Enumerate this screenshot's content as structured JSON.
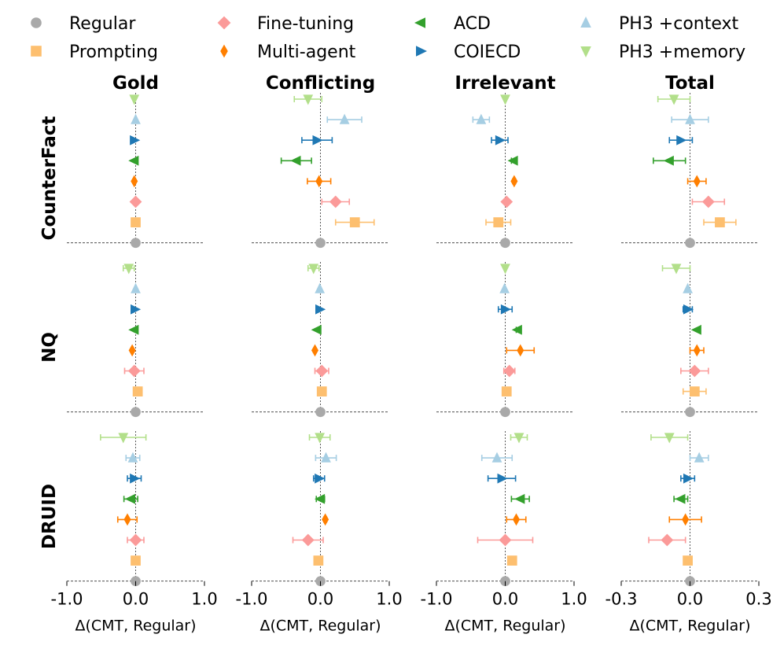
{
  "legend": {
    "placement": "top",
    "entries": [
      {
        "label": "Regular",
        "marker": "circle",
        "color": "#a9a9a9"
      },
      {
        "label": "Fine-tuning",
        "marker": "diamond",
        "color": "#fb9a99"
      },
      {
        "label": "ACD",
        "marker": "triangle-left",
        "color": "#33a02c"
      },
      {
        "label": "PH3 +context",
        "marker": "triangle-up",
        "color": "#a6cee3"
      },
      {
        "label": "Prompting",
        "marker": "square",
        "color": "#fdbf6f"
      },
      {
        "label": "Multi-agent",
        "marker": "thin-diamond",
        "color": "#ff7f00"
      },
      {
        "label": "COIECD",
        "marker": "triangle-right",
        "color": "#1f78b4"
      },
      {
        "label": "PH3 +memory",
        "marker": "triangle-down",
        "color": "#b2df8a"
      }
    ]
  },
  "chart_data": {
    "type": "scatter",
    "columns": [
      "Gold",
      "Conflicting",
      "Irrelevant",
      "Total"
    ],
    "rows": [
      "CounterFact",
      "NQ",
      "DRUID"
    ],
    "xlabel": "Δ(CMT, Regular)",
    "xlims": [
      [
        -1.0,
        1.0
      ],
      [
        -1.0,
        1.0
      ],
      [
        -1.0,
        1.0
      ],
      [
        -0.3,
        0.3
      ]
    ],
    "xticks": [
      [
        "-1.0",
        "0.0",
        "1.0"
      ],
      [
        "-1.0",
        "0.0",
        "1.0"
      ],
      [
        "-1.0",
        "0.0",
        "1.0"
      ],
      [
        "-0.3",
        "0.0",
        "0.3"
      ]
    ],
    "xtick_values": [
      [
        -1.0,
        0.0,
        1.0
      ],
      [
        -1.0,
        0.0,
        1.0
      ],
      [
        -1.0,
        0.0,
        1.0
      ],
      [
        -0.3,
        0.0,
        0.3
      ]
    ],
    "methods": [
      "PH3 +memory",
      "PH3 +context",
      "COIECD",
      "ACD",
      "Multi-agent",
      "Fine-tuning",
      "Prompting",
      "Regular"
    ],
    "values": {
      "CounterFact": {
        "Gold": [
          [
            -0.02,
            0,
            0
          ],
          [
            0.0,
            0,
            0
          ],
          [
            -0.02,
            0,
            0
          ],
          [
            -0.02,
            0,
            0
          ],
          [
            -0.02,
            0,
            0
          ],
          [
            0.0,
            0,
            0
          ],
          [
            0.0,
            0,
            0
          ],
          [
            0.0,
            0,
            0
          ]
        ],
        "Conflicting": [
          [
            -0.18,
            0.2,
            0.2
          ],
          [
            0.35,
            0.25,
            0.25
          ],
          [
            -0.05,
            0.22,
            0.22
          ],
          [
            -0.35,
            0.22,
            0.22
          ],
          [
            -0.02,
            0.17,
            0.17
          ],
          [
            0.22,
            0.2,
            0.2
          ],
          [
            0.5,
            0.28,
            0.28
          ],
          [
            0.0,
            0,
            0
          ]
        ],
        "Irrelevant": [
          [
            0.0,
            0,
            0
          ],
          [
            -0.35,
            0.12,
            0.12
          ],
          [
            -0.08,
            0.12,
            0.12
          ],
          [
            0.12,
            0.03,
            0.03
          ],
          [
            0.13,
            0.02,
            0.02
          ],
          [
            0.02,
            0,
            0
          ],
          [
            -0.1,
            0.18,
            0.18
          ],
          [
            0.0,
            0,
            0
          ]
        ],
        "Total": [
          [
            -0.07,
            0.07,
            0.07
          ],
          [
            0.0,
            0.08,
            0.08
          ],
          [
            -0.04,
            0.05,
            0.05
          ],
          [
            -0.09,
            0.07,
            0.07
          ],
          [
            0.03,
            0.04,
            0.04
          ],
          [
            0.08,
            0.07,
            0.07
          ],
          [
            0.13,
            0.07,
            0.07
          ],
          [
            0.0,
            0,
            0
          ]
        ]
      },
      "NQ": {
        "Gold": [
          [
            -0.1,
            0.08,
            0.08
          ],
          [
            0.0,
            0,
            0
          ],
          [
            -0.01,
            0,
            0
          ],
          [
            -0.02,
            0,
            0
          ],
          [
            -0.05,
            0,
            0
          ],
          [
            -0.02,
            0.14,
            0.14
          ],
          [
            0.03,
            0,
            0
          ],
          [
            0.0,
            0,
            0
          ]
        ],
        "Conflicting": [
          [
            -0.1,
            0.08,
            0.08
          ],
          [
            -0.01,
            0,
            0
          ],
          [
            -0.01,
            0,
            0
          ],
          [
            -0.05,
            0,
            0
          ],
          [
            -0.08,
            0,
            0
          ],
          [
            0.02,
            0.1,
            0.1
          ],
          [
            0.02,
            0,
            0
          ],
          [
            0.0,
            0,
            0
          ]
        ],
        "Irrelevant": [
          [
            0.0,
            0,
            0
          ],
          [
            -0.01,
            0,
            0
          ],
          [
            0.0,
            0.1,
            0.1
          ],
          [
            0.18,
            0.02,
            0.02
          ],
          [
            0.22,
            0.2,
            0.2
          ],
          [
            0.06,
            0.08,
            0.08
          ],
          [
            0.02,
            0,
            0
          ],
          [
            0.0,
            0,
            0
          ]
        ],
        "Total": [
          [
            -0.06,
            0.06,
            0.06
          ],
          [
            -0.01,
            0,
            0
          ],
          [
            -0.01,
            0.02,
            0.02
          ],
          [
            0.03,
            0,
            0
          ],
          [
            0.03,
            0.03,
            0.03
          ],
          [
            0.02,
            0.06,
            0.06
          ],
          [
            0.02,
            0.05,
            0.05
          ],
          [
            0.0,
            0,
            0
          ]
        ]
      },
      "DRUID": {
        "Gold": [
          [
            -0.18,
            0.33,
            0.33
          ],
          [
            -0.04,
            0.1,
            0.1
          ],
          [
            -0.02,
            0.1,
            0.1
          ],
          [
            -0.07,
            0.1,
            0.1
          ],
          [
            -0.12,
            0.14,
            0.14
          ],
          [
            0.0,
            0.12,
            0.12
          ],
          [
            0.0,
            0,
            0
          ],
          [
            0.0,
            0,
            0
          ]
        ],
        "Conflicting": [
          [
            -0.01,
            0.15,
            0.15
          ],
          [
            0.08,
            0.15,
            0.15
          ],
          [
            -0.02,
            0.08,
            0.08
          ],
          [
            0.0,
            0.06,
            0.06
          ],
          [
            0.07,
            0.02,
            0.02
          ],
          [
            -0.18,
            0.22,
            0.22
          ],
          [
            -0.03,
            0,
            0
          ],
          [
            0.0,
            0,
            0
          ]
        ],
        "Irrelevant": [
          [
            0.2,
            0.12,
            0.12
          ],
          [
            -0.12,
            0.22,
            0.22
          ],
          [
            -0.05,
            0.2,
            0.2
          ],
          [
            0.22,
            0.13,
            0.13
          ],
          [
            0.16,
            0.14,
            0.14
          ],
          [
            0.0,
            0.4,
            0.4
          ],
          [
            0.1,
            0.02,
            0.02
          ],
          [
            0.0,
            0,
            0
          ]
        ],
        "Total": [
          [
            -0.09,
            0.08,
            0.08
          ],
          [
            0.04,
            0.04,
            0.04
          ],
          [
            -0.01,
            0.03,
            0.03
          ],
          [
            -0.04,
            0.03,
            0.03
          ],
          [
            -0.02,
            0.07,
            0.07
          ],
          [
            -0.1,
            0.08,
            0.08
          ],
          [
            -0.01,
            0.01,
            0.01
          ],
          [
            0.0,
            0,
            0
          ]
        ]
      }
    }
  },
  "colors": {
    "Regular": "#a9a9a9",
    "Prompting": "#fdbf6f",
    "Fine-tuning": "#fb9a99",
    "Multi-agent": "#ff7f00",
    "ACD": "#33a02c",
    "COIECD": "#1f78b4",
    "PH3 +context": "#a6cee3",
    "PH3 +memory": "#b2df8a"
  },
  "markers": {
    "Regular": "circle",
    "Prompting": "square",
    "Fine-tuning": "diamond",
    "Multi-agent": "thin-diamond",
    "ACD": "triangle-left",
    "COIECD": "triangle-right",
    "PH3 +context": "triangle-up",
    "PH3 +memory": "triangle-down"
  }
}
